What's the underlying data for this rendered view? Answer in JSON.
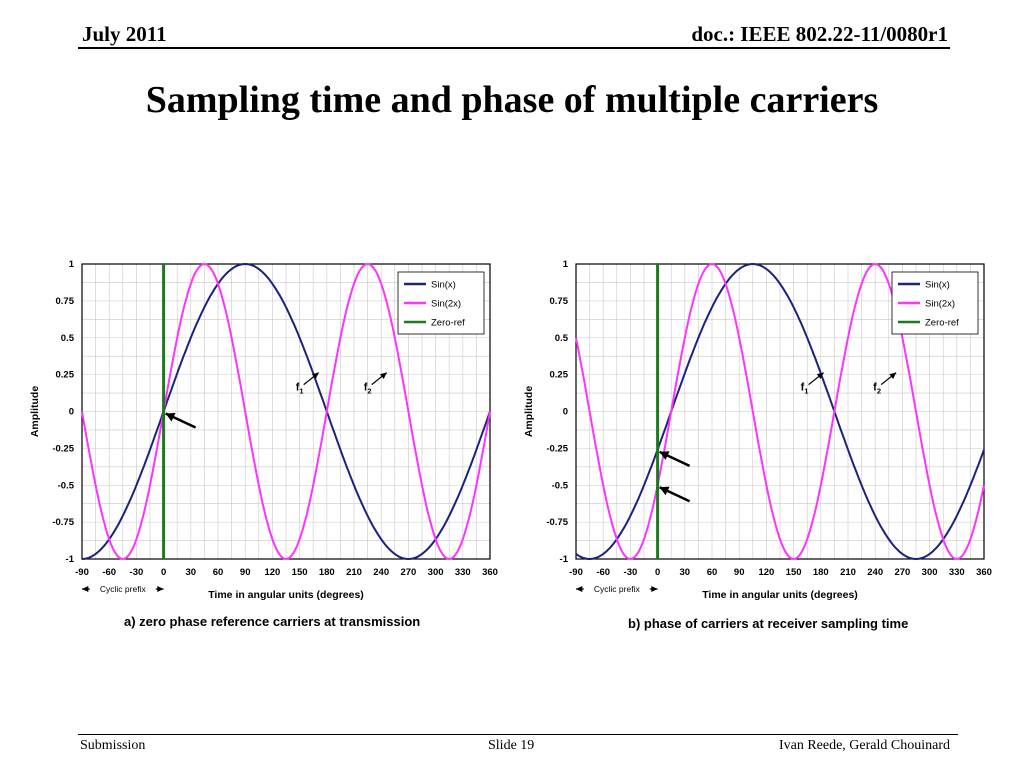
{
  "header": {
    "date": "July 2011",
    "doc": "doc.: IEEE 802.22-11/0080r1"
  },
  "slide_title": "Sampling time and phase of multiple carriers",
  "footer": {
    "left": "Submission",
    "center": "Slide 19",
    "right": "Ivan Reede, Gerald Chouinard"
  },
  "chart_data": [
    {
      "type": "line",
      "caption": "a) zero phase reference carriers at transmission",
      "xlabel": "Time in angular units (degrees)",
      "ylabel": "Amplitude",
      "x_ticks": [
        "-90",
        "-60",
        "-30",
        "0",
        "30",
        "60",
        "90",
        "120",
        "150",
        "180",
        "210",
        "240",
        "270",
        "300",
        "330",
        "360"
      ],
      "y_ticks": [
        "1",
        "0.75",
        "0.5",
        "0.25",
        "0",
        "-0.25",
        "-0.5",
        "-0.75",
        "-1"
      ],
      "xlim": [
        -90,
        360
      ],
      "ylim": [
        -1,
        1
      ],
      "grid": true,
      "legend_position": "top-right",
      "phase_shift_deg": 0,
      "series": [
        {
          "name": "Sin(x)",
          "function": "sin(x)",
          "color": "#1a237e"
        },
        {
          "name": "Sin(2x)",
          "function": "sin(2x)",
          "color": "#ff33ff"
        },
        {
          "name": "Zero-ref",
          "x": 0,
          "color": "#1b7a1b"
        }
      ],
      "annotations": {
        "f1": "f",
        "f1_sub": "1",
        "f2": "f",
        "f2_sub": "2",
        "cyclic_prefix": "Cyclic prefix"
      },
      "sampling_points": [
        [
          0,
          0
        ]
      ]
    },
    {
      "type": "line",
      "caption": "b) phase of carriers at receiver sampling time",
      "xlabel": "Time in angular units (degrees)",
      "ylabel": "Amplitude",
      "x_ticks": [
        "-90",
        "-60",
        "-30",
        "0",
        "30",
        "60",
        "90",
        "120",
        "150",
        "180",
        "210",
        "240",
        "270",
        "300",
        "330",
        "360"
      ],
      "y_ticks": [
        "1",
        "0.75",
        "0.5",
        "0.25",
        "0",
        "-0.25",
        "-0.5",
        "-0.75",
        "-1"
      ],
      "xlim": [
        -90,
        360
      ],
      "ylim": [
        -1,
        1
      ],
      "grid": true,
      "legend_position": "top-right",
      "phase_shift_deg": -15,
      "series": [
        {
          "name": "Sin(x)",
          "function": "sin(x - 15)",
          "color": "#1a237e"
        },
        {
          "name": "Sin(2x)",
          "function": "sin(2(x - 15))",
          "color": "#ff33ff"
        },
        {
          "name": "Zero-ref",
          "x": 0,
          "color": "#1b7a1b"
        }
      ],
      "annotations": {
        "f1": "f",
        "f1_sub": "1",
        "f2": "f",
        "f2_sub": "2",
        "cyclic_prefix": "Cyclic prefix"
      },
      "sampling_points": [
        [
          0,
          -0.26
        ],
        [
          0,
          -0.5
        ]
      ]
    }
  ]
}
